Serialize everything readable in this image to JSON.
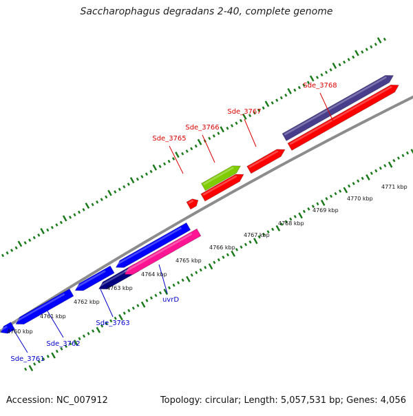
{
  "title": "Saccharophagus degradans 2-40, complete genome",
  "footer": {
    "accession": "Accession: NC_007912",
    "summary": "Topology: circular; Length: 5,057,531 bp; Genes: 4,056"
  },
  "colors": {
    "backbone": "#8c8c8c",
    "tick": "#1a7a1a",
    "forward_label": "#dd0000",
    "reverse_label": "#0000cc",
    "red_gene": "#ff0000",
    "blue_gene": "#0000ff",
    "navy_gene": "#000080",
    "pink_gene": "#ff1493",
    "lime_gene": "#7fcc00",
    "slate_gene": "#483d8b"
  },
  "kbp_labels": [
    "4760 kbp",
    "4761 kbp",
    "4762 kbp",
    "4763 kbp",
    "4764 kbp",
    "4765 kbp",
    "4766 kbp",
    "4767 kbp",
    "4768 kbp",
    "4769 kbp",
    "4770 kbp",
    "4771 kbp"
  ],
  "genes": [
    {
      "name": "Sde_3761",
      "strand": "reverse",
      "color": "blue_gene",
      "label_color": "reverse_label"
    },
    {
      "name": "Sde_3762",
      "strand": "reverse",
      "color": "blue_gene",
      "label_color": "reverse_label"
    },
    {
      "name": "Sde_3763",
      "strand": "reverse",
      "color": "navy_gene",
      "label_color": "reverse_label"
    },
    {
      "name": "uvrD",
      "strand": "reverse",
      "color": "pink_gene",
      "label_color": "reverse_label"
    },
    {
      "name": "Sde_3765",
      "strand": "forward",
      "color": "red_gene",
      "label_color": "forward_label"
    },
    {
      "name": "Sde_3766",
      "strand": "forward",
      "color": "lime_gene",
      "label_color": "forward_label"
    },
    {
      "name": "Sde_3767",
      "strand": "forward",
      "color": "red_gene",
      "label_color": "forward_label"
    },
    {
      "name": "Sde_3768",
      "strand": "forward",
      "color": "slate_gene",
      "label_color": "forward_label"
    }
  ]
}
